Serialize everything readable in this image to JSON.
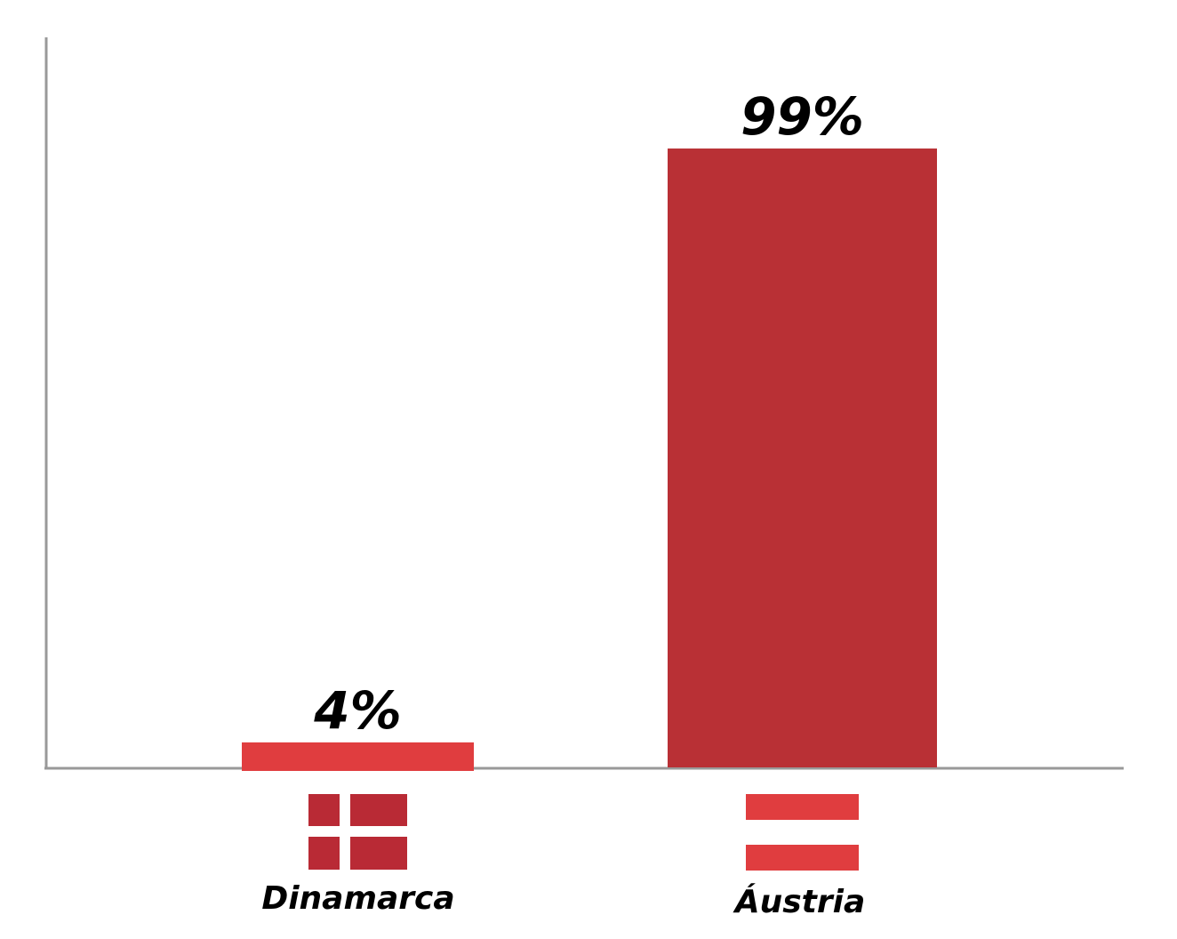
{
  "chart_data": {
    "type": "bar",
    "categories": [
      "Dinamarca",
      "Áustria"
    ],
    "values": [
      4,
      99
    ],
    "value_labels": [
      "4%",
      "99%"
    ],
    "ylim": [
      0,
      100
    ],
    "grid": false,
    "bar_colors": [
      "#e03d3f",
      "#b93035"
    ],
    "axis_color": "#999999",
    "flags": [
      {
        "icon": "denmark-flag-icon",
        "color": "#b92a35"
      },
      {
        "icon": "austria-flag-icon",
        "color": "#e03d3f"
      }
    ]
  }
}
